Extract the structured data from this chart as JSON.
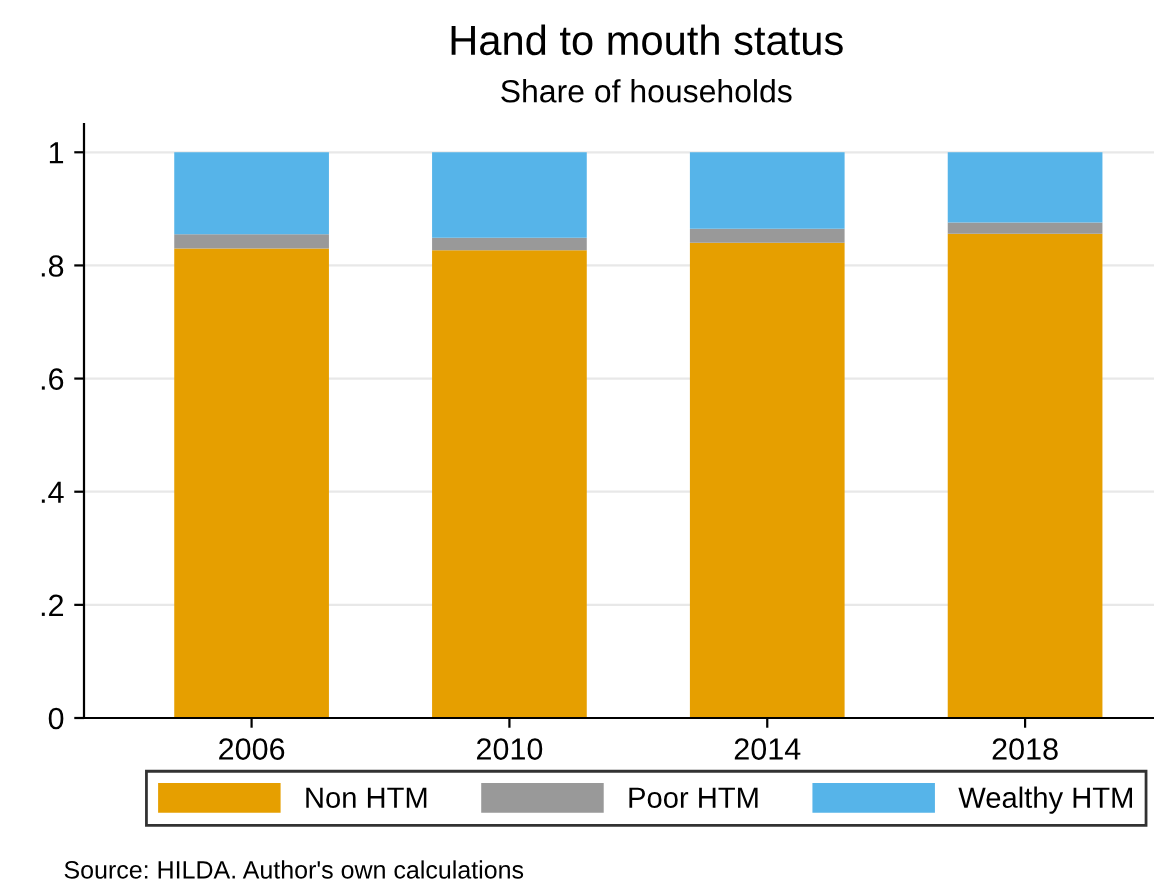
{
  "chart_data": {
    "type": "bar",
    "stacked": true,
    "title": "Hand to mouth status",
    "subtitle": "Share of households",
    "categories": [
      "2006",
      "2010",
      "2014",
      "2018"
    ],
    "series": [
      {
        "name": "Non HTM",
        "color": "#e69f00",
        "values": [
          0.83,
          0.827,
          0.84,
          0.856
        ]
      },
      {
        "name": "Poor HTM",
        "color": "#999999",
        "values": [
          0.025,
          0.022,
          0.025,
          0.02
        ]
      },
      {
        "name": "Wealthy HTM",
        "color": "#56b4e9",
        "values": [
          0.145,
          0.151,
          0.135,
          0.124
        ]
      }
    ],
    "ylim": [
      0,
      1.05
    ],
    "yticks": [
      {
        "value": 0,
        "label": "0"
      },
      {
        "value": 0.2,
        "label": ".2"
      },
      {
        "value": 0.4,
        "label": ".4"
      },
      {
        "value": 0.6,
        "label": ".6"
      },
      {
        "value": 0.8,
        "label": ".8"
      },
      {
        "value": 1,
        "label": "1"
      }
    ],
    "grid": "y",
    "legend": "bottom",
    "annotations": [
      "Source: HILDA. Author's own calculations"
    ]
  }
}
